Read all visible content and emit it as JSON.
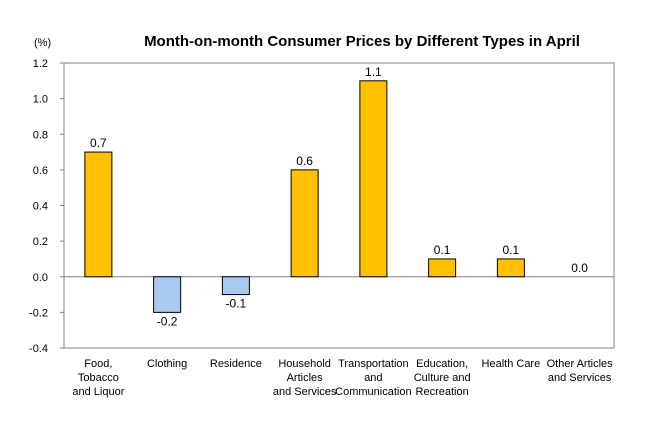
{
  "chart_data": {
    "type": "bar",
    "title": "Month-on-month Consumer Prices by Different Types in April",
    "unit_label": "(%)",
    "categories": [
      [
        "Food,",
        "Tobacco",
        "and Liquor"
      ],
      [
        "Clothing"
      ],
      [
        "Residence"
      ],
      [
        "Household",
        "Articles",
        "and Services"
      ],
      [
        "Transportation",
        "and",
        "Communication"
      ],
      [
        "Education,",
        "Culture and",
        "Recreation"
      ],
      [
        "Health Care"
      ],
      [
        "Other Articles",
        "and Services"
      ]
    ],
    "values": [
      0.7,
      -0.2,
      -0.1,
      0.6,
      1.1,
      0.1,
      0.1,
      0.0
    ],
    "value_labels": [
      "0.7",
      "-0.2",
      "-0.1",
      "0.6",
      "1.1",
      "0.1",
      "0.1",
      "0.0"
    ],
    "yticks": [
      "1.2",
      "1.0",
      "0.8",
      "0.6",
      "0.4",
      "0.2",
      "0.0",
      "-0.2",
      "-0.4"
    ],
    "ylim": [
      -0.4,
      1.2
    ],
    "grid": false,
    "legend": "none",
    "colors": {
      "positive": "#FFC000",
      "negative": "#A6CAF0",
      "bar_stroke": "#000000",
      "axis": "#808080"
    }
  }
}
